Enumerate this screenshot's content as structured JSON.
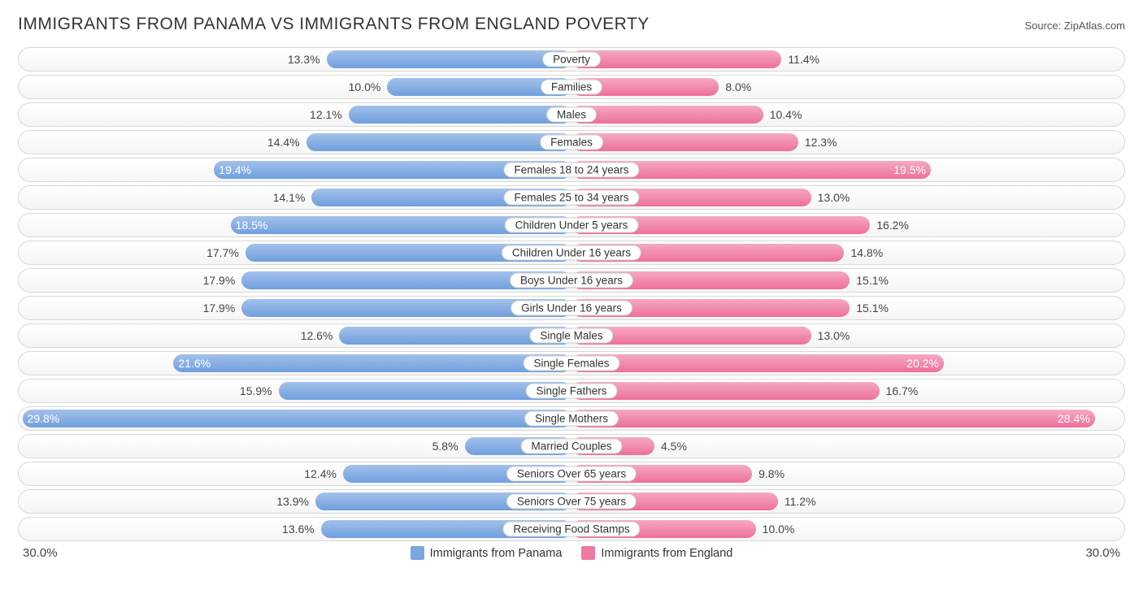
{
  "title": "IMMIGRANTS FROM PANAMA VS IMMIGRANTS FROM ENGLAND POVERTY",
  "source": "Source: ZipAtlas.com",
  "chart": {
    "type": "diverging-bar",
    "axis_max": 30.0,
    "axis_max_label": "30.0%",
    "background_color": "#ffffff",
    "row_bg_gradient": [
      "#ffffff",
      "#f5f5f5"
    ],
    "row_border_color": "#d8d8d8",
    "label_pill_bg": "#ffffff",
    "label_pill_border": "#cccccc",
    "series": [
      {
        "key": "panama",
        "label": "Immigrants from Panama",
        "side": "left",
        "fill_gradient": [
          "#a3c1ea",
          "#6f9fde"
        ],
        "swatch": "#7aa6e0"
      },
      {
        "key": "england",
        "label": "Immigrants from England",
        "side": "right",
        "fill_gradient": [
          "#f6a9c2",
          "#ed6f9c"
        ],
        "swatch": "#ee7aa4"
      }
    ],
    "categories": [
      {
        "label": "Poverty",
        "panama": 13.3,
        "england": 11.4,
        "panama_label": "13.3%",
        "england_label": "11.4%"
      },
      {
        "label": "Families",
        "panama": 10.0,
        "england": 8.0,
        "panama_label": "10.0%",
        "england_label": "8.0%"
      },
      {
        "label": "Males",
        "panama": 12.1,
        "england": 10.4,
        "panama_label": "12.1%",
        "england_label": "10.4%"
      },
      {
        "label": "Females",
        "panama": 14.4,
        "england": 12.3,
        "panama_label": "14.4%",
        "england_label": "12.3%"
      },
      {
        "label": "Females 18 to 24 years",
        "panama": 19.4,
        "england": 19.5,
        "panama_label": "19.4%",
        "england_label": "19.5%",
        "panama_inside": true,
        "england_inside": true
      },
      {
        "label": "Females 25 to 34 years",
        "panama": 14.1,
        "england": 13.0,
        "panama_label": "14.1%",
        "england_label": "13.0%"
      },
      {
        "label": "Children Under 5 years",
        "panama": 18.5,
        "england": 16.2,
        "panama_label": "18.5%",
        "england_label": "16.2%",
        "panama_inside": true
      },
      {
        "label": "Children Under 16 years",
        "panama": 17.7,
        "england": 14.8,
        "panama_label": "17.7%",
        "england_label": "14.8%"
      },
      {
        "label": "Boys Under 16 years",
        "panama": 17.9,
        "england": 15.1,
        "panama_label": "17.9%",
        "england_label": "15.1%"
      },
      {
        "label": "Girls Under 16 years",
        "panama": 17.9,
        "england": 15.1,
        "panama_label": "17.9%",
        "england_label": "15.1%"
      },
      {
        "label": "Single Males",
        "panama": 12.6,
        "england": 13.0,
        "panama_label": "12.6%",
        "england_label": "13.0%"
      },
      {
        "label": "Single Females",
        "panama": 21.6,
        "england": 20.2,
        "panama_label": "21.6%",
        "england_label": "20.2%",
        "panama_inside": true,
        "england_inside": true
      },
      {
        "label": "Single Fathers",
        "panama": 15.9,
        "england": 16.7,
        "panama_label": "15.9%",
        "england_label": "16.7%"
      },
      {
        "label": "Single Mothers",
        "panama": 29.8,
        "england": 28.4,
        "panama_label": "29.8%",
        "england_label": "28.4%",
        "panama_inside": true,
        "england_inside": true
      },
      {
        "label": "Married Couples",
        "panama": 5.8,
        "england": 4.5,
        "panama_label": "5.8%",
        "england_label": "4.5%"
      },
      {
        "label": "Seniors Over 65 years",
        "panama": 12.4,
        "england": 9.8,
        "panama_label": "12.4%",
        "england_label": "9.8%"
      },
      {
        "label": "Seniors Over 75 years",
        "panama": 13.9,
        "england": 11.2,
        "panama_label": "13.9%",
        "england_label": "11.2%"
      },
      {
        "label": "Receiving Food Stamps",
        "panama": 13.6,
        "england": 10.0,
        "panama_label": "13.6%",
        "england_label": "10.0%"
      }
    ]
  }
}
